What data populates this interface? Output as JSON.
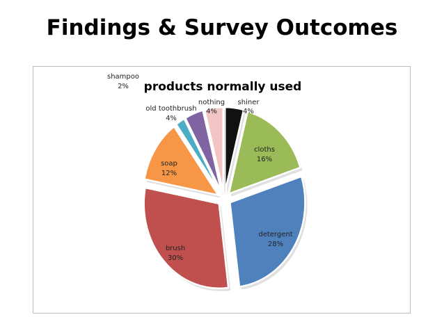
{
  "slide": {
    "title": "Findings & Survey Outcomes"
  },
  "chart_data": {
    "type": "pie",
    "title": "products normally used",
    "series": [
      {
        "name": "shiner",
        "value": 4,
        "color": "#111111"
      },
      {
        "name": "cloths",
        "value": 16,
        "color": "#9bbb59"
      },
      {
        "name": "detergent",
        "value": 28,
        "color": "#4f81bd"
      },
      {
        "name": "brush",
        "value": 30,
        "color": "#c0504d"
      },
      {
        "name": "soap",
        "value": 12,
        "color": "#f79646"
      },
      {
        "name": "shampoo",
        "value": 2,
        "color": "#4bacc6"
      },
      {
        "name": "old toothbrush",
        "value": 4,
        "color": "#8064a2"
      },
      {
        "name": "nothing",
        "value": 4,
        "color": "#f2c4c4"
      }
    ],
    "labels": [
      {
        "name": "shiner",
        "pct": "4%"
      },
      {
        "name": "cloths",
        "pct": "16%"
      },
      {
        "name": "detergent",
        "pct": "28%"
      },
      {
        "name": "brush",
        "pct": "30%"
      },
      {
        "name": "soap",
        "pct": "12%"
      },
      {
        "name": "shampoo",
        "pct": "2%"
      },
      {
        "name": "old toothbrush",
        "pct": "4%"
      },
      {
        "name": "nothing",
        "pct": "4%"
      }
    ]
  }
}
